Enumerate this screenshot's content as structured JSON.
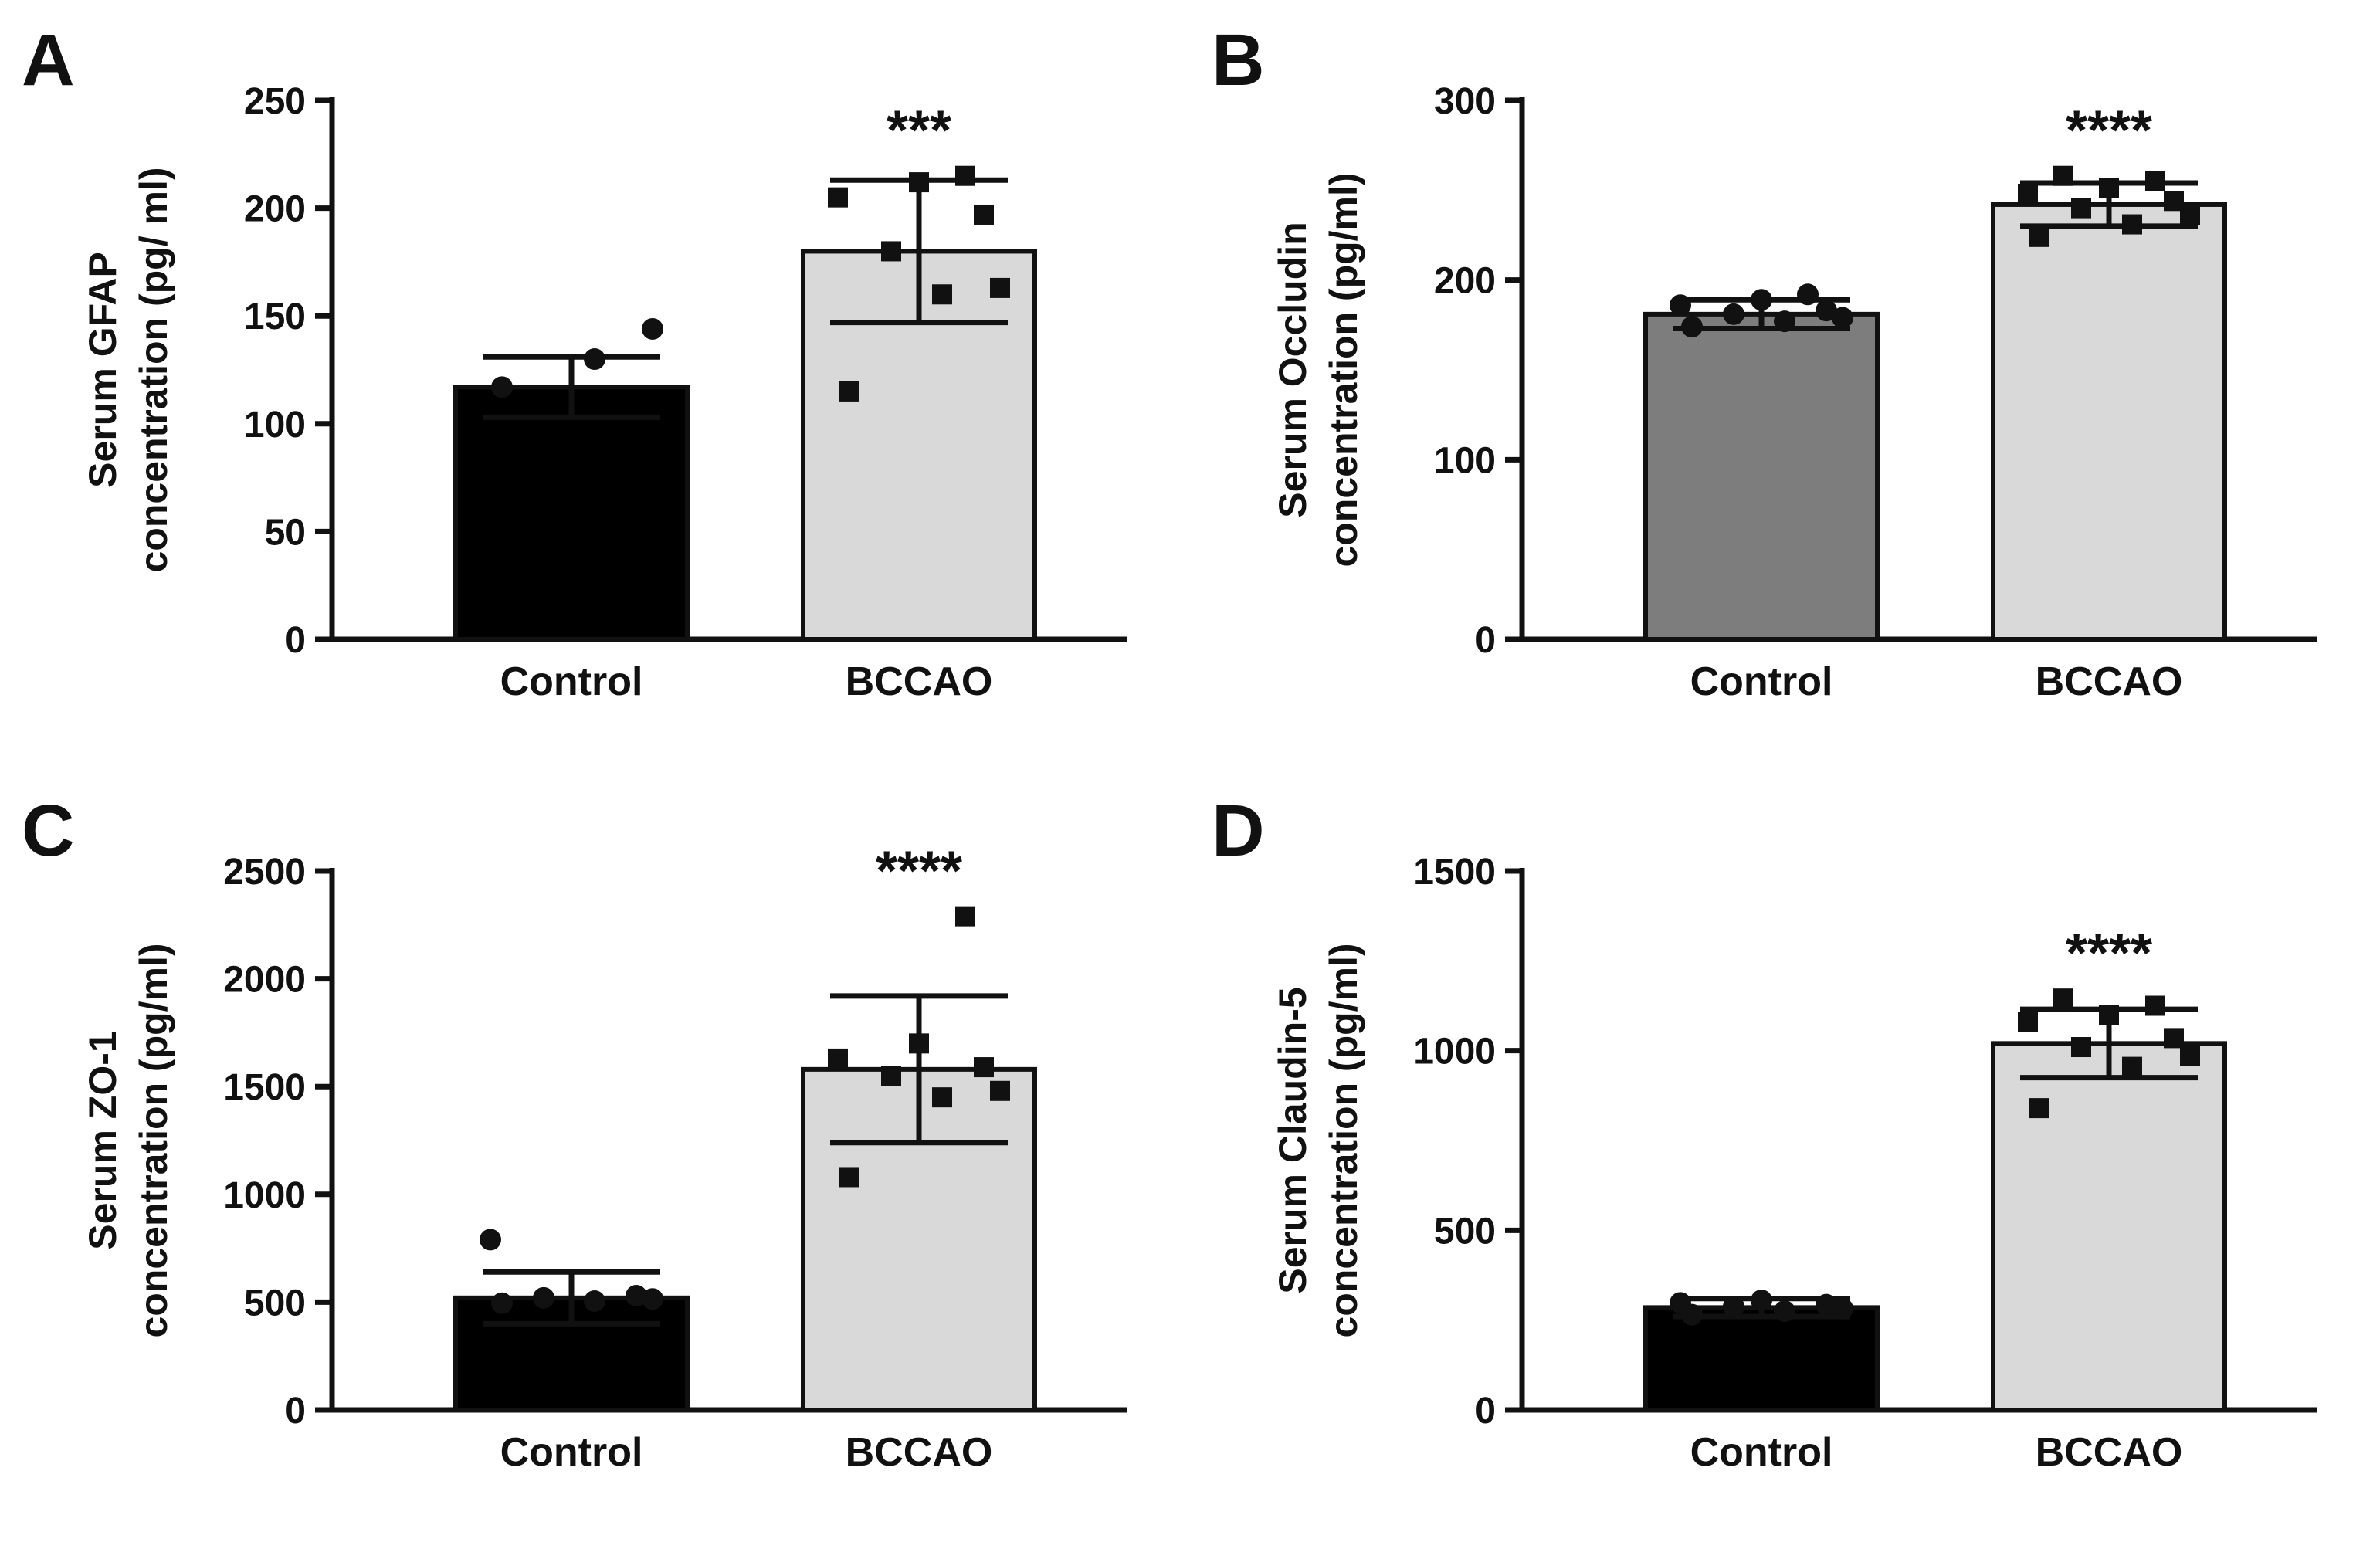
{
  "figure": {
    "background": "#ffffff",
    "description": "Four-panel bar chart figure comparing serum marker concentrations between Control and BCCAO groups"
  },
  "chart_data": [
    {
      "panel": "A",
      "type": "bar",
      "categories": [
        "Control",
        "BCCAO"
      ],
      "ylabel_lines": [
        "Serum GFAP",
        "concentration (pg/ ml)"
      ],
      "ylim": [
        0,
        250
      ],
      "yticks": [
        0,
        50,
        100,
        150,
        200,
        250
      ],
      "significance": "***",
      "series": [
        {
          "name": "Control",
          "mean": 117,
          "sd": 14,
          "color": "#000000",
          "marker": "circle",
          "points": [
            117,
            130,
            144
          ]
        },
        {
          "name": "BCCAO",
          "mean": 180,
          "sd": 33,
          "color": "#d9d9d9",
          "marker": "square",
          "points": [
            115,
            160,
            163,
            180,
            197,
            205,
            212,
            215
          ]
        }
      ]
    },
    {
      "panel": "B",
      "type": "bar",
      "categories": [
        "Control",
        "BCCAO"
      ],
      "ylabel_lines": [
        "Serum Occludin",
        "concentration (pg/ml)"
      ],
      "ylim": [
        0,
        300
      ],
      "yticks": [
        0,
        100,
        200,
        300
      ],
      "significance": "****",
      "series": [
        {
          "name": "Control",
          "mean": 181,
          "sd": 8,
          "color": "#7d7d7d",
          "marker": "circle",
          "points": [
            174,
            177,
            179,
            181,
            183,
            186,
            189,
            192
          ]
        },
        {
          "name": "BCCAO",
          "mean": 242,
          "sd": 12,
          "color": "#d9d9d9",
          "marker": "square",
          "points": [
            224,
            231,
            236,
            240,
            244,
            248,
            251,
            255,
            258
          ]
        }
      ]
    },
    {
      "panel": "C",
      "type": "bar",
      "categories": [
        "Control",
        "BCCAO"
      ],
      "ylabel_lines": [
        "Serum ZO-1",
        "concentration (pg/ml)"
      ],
      "ylim": [
        0,
        2500
      ],
      "yticks": [
        0,
        500,
        1000,
        1500,
        2000,
        2500
      ],
      "significance": "****",
      "series": [
        {
          "name": "Control",
          "mean": 520,
          "sd": 120,
          "color": "#000000",
          "marker": "circle",
          "points": [
            495,
            505,
            515,
            520,
            530,
            790
          ]
        },
        {
          "name": "BCCAO",
          "mean": 1580,
          "sd": 340,
          "color": "#d9d9d9",
          "marker": "square",
          "points": [
            1080,
            1450,
            1480,
            1550,
            1590,
            1630,
            1700,
            2290
          ]
        }
      ]
    },
    {
      "panel": "D",
      "type": "bar",
      "categories": [
        "Control",
        "BCCAO"
      ],
      "ylabel_lines": [
        "Serum Claudin-5",
        "concentration (pg/ml)"
      ],
      "ylim": [
        0,
        1500
      ],
      "yticks": [
        0,
        500,
        1000,
        1500
      ],
      "significance": "****",
      "series": [
        {
          "name": "Control",
          "mean": 285,
          "sd": 25,
          "color": "#000000",
          "marker": "circle",
          "points": [
            265,
            275,
            282,
            288,
            293,
            298,
            305
          ]
        },
        {
          "name": "BCCAO",
          "mean": 1020,
          "sd": 95,
          "color": "#d9d9d9",
          "marker": "square",
          "points": [
            840,
            955,
            985,
            1010,
            1035,
            1080,
            1100,
            1125,
            1145
          ]
        }
      ]
    }
  ]
}
